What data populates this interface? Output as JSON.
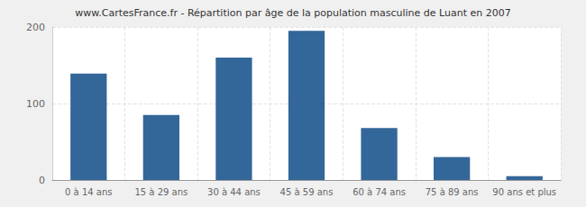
{
  "chart_data": {
    "type": "bar",
    "title": "www.CartesFrance.fr - Répartition par âge de la population masculine de Luant en 2007",
    "categories": [
      "0 à 14 ans",
      "15 à 29 ans",
      "30 à 44 ans",
      "45 à 59 ans",
      "60 à 74 ans",
      "75 à 89 ans",
      "90 ans et plus"
    ],
    "values": [
      139,
      85,
      160,
      195,
      68,
      30,
      5
    ],
    "color": "#336699",
    "ylim": [
      0,
      200
    ],
    "yticks": [
      0,
      100,
      200
    ],
    "grid": true
  }
}
